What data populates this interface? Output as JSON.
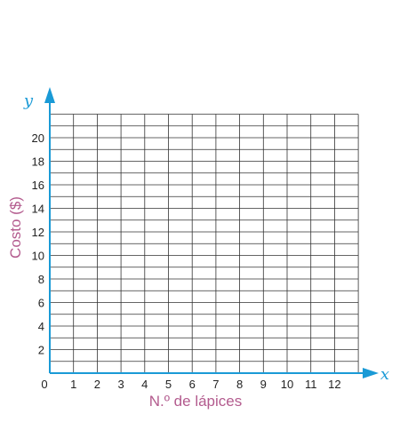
{
  "chart_data": {
    "type": "scatter",
    "title": "",
    "xlabel": "N.º de lápices",
    "ylabel": "Costo ($)",
    "x_axis_name": "x",
    "y_axis_name": "y",
    "origin_label": "0",
    "xlim": [
      0,
      13
    ],
    "ylim": [
      0,
      22
    ],
    "x_ticks": [
      1,
      2,
      3,
      4,
      5,
      6,
      7,
      8,
      9,
      10,
      11,
      12
    ],
    "y_ticks": [
      2,
      4,
      6,
      8,
      10,
      12,
      14,
      16,
      18,
      20
    ],
    "grid": true,
    "series": [],
    "colors": {
      "axis": "#1a9ad6",
      "grid": "#333333",
      "label": "#b35b8e",
      "tick": "#222222"
    }
  }
}
